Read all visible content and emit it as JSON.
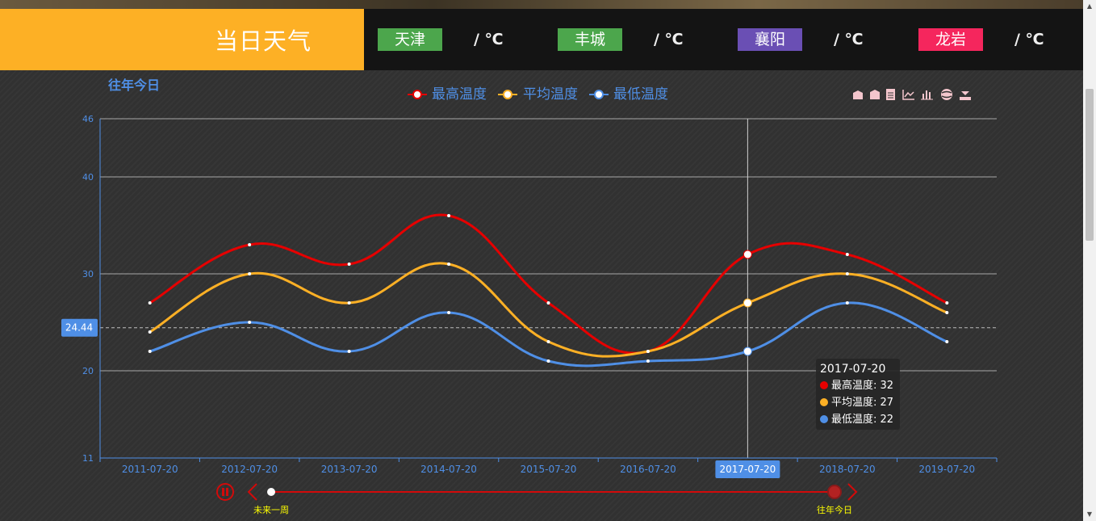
{
  "header": {
    "title": "当日天气",
    "cities": [
      {
        "name": "天津",
        "temp": "/ ℃",
        "color": "#4ca64c"
      },
      {
        "name": "丰城",
        "temp": "/ ℃",
        "color": "#4ca64c"
      },
      {
        "name": "襄阳",
        "temp": "/ ℃",
        "color": "#6a4fb4"
      },
      {
        "name": "龙岩",
        "temp": "/ ℃",
        "color": "#f5265d"
      }
    ]
  },
  "toolbox": {
    "icons": [
      "mark-icon",
      "mark-undo-icon",
      "data-view-icon",
      "line-chart-icon",
      "bar-chart-icon",
      "restore-icon",
      "save-image-icon"
    ]
  },
  "timeline": {
    "labels": [
      "未来一周",
      "往年今日"
    ],
    "label_color": "#ffff00",
    "line_color": "#d20a0a",
    "current_index": 1
  },
  "tooltip": {
    "date": "2017-07-20",
    "rows": [
      {
        "label": "最高温度: 32",
        "color": "#e60000"
      },
      {
        "label": "平均温度: 27",
        "color": "#fdb025"
      },
      {
        "label": "最低温度: 22",
        "color": "#4f8fe6"
      }
    ]
  },
  "chart_data": {
    "type": "line",
    "title": "往年今日",
    "x": [
      "2011-07-20",
      "2012-07-20",
      "2013-07-20",
      "2014-07-20",
      "2015-07-20",
      "2016-07-20",
      "2017-07-20",
      "2018-07-20",
      "2019-07-20"
    ],
    "series": [
      {
        "name": "最高温度",
        "color": "#e60000",
        "values": [
          27,
          33,
          31,
          36,
          27,
          22,
          32,
          32,
          27
        ]
      },
      {
        "name": "平均温度",
        "color": "#fdb025",
        "values": [
          24,
          30,
          27,
          31,
          23,
          22,
          27,
          30,
          26
        ]
      },
      {
        "name": "最低温度",
        "color": "#4f8fe6",
        "values": [
          22,
          25,
          22,
          26,
          21,
          21,
          22,
          27,
          23
        ]
      }
    ],
    "yticks": [
      11,
      20,
      30,
      40,
      46
    ],
    "ylim": [
      11,
      46
    ],
    "mark_line": {
      "value": 24.44,
      "label": "24.44"
    },
    "highlight_x": "2017-07-20",
    "legend_position": "top-center",
    "grid": true,
    "axis_color": "#4f8fe6"
  }
}
